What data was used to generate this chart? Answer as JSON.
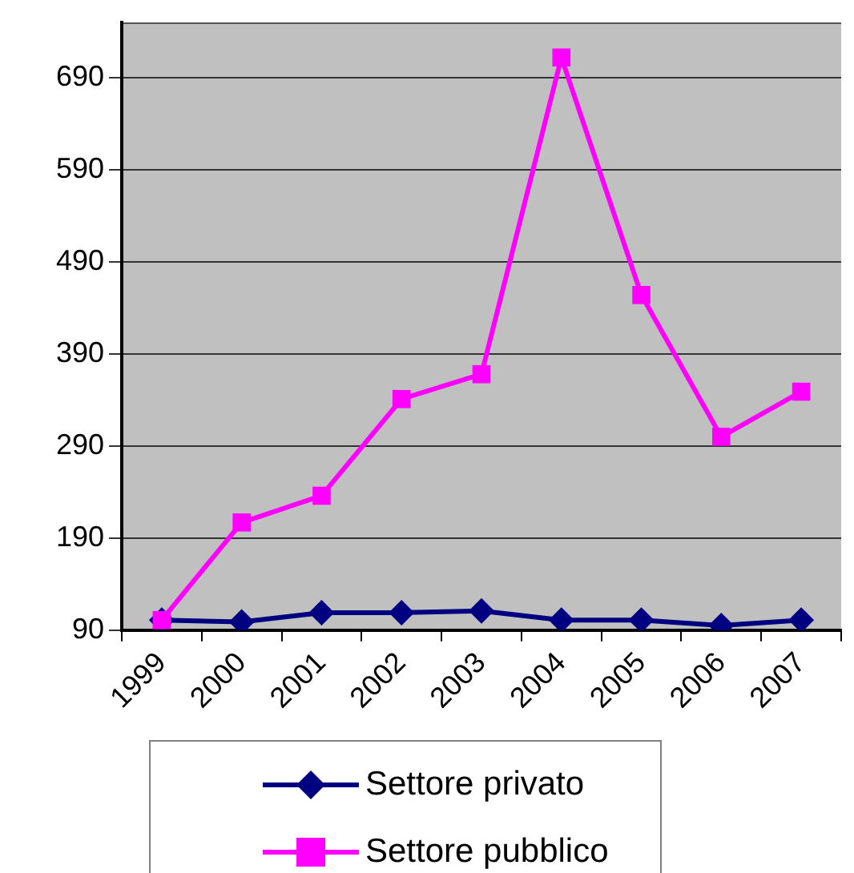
{
  "chart_data": {
    "type": "line",
    "categories": [
      "1999",
      "2000",
      "2001",
      "2002",
      "2003",
      "2004",
      "2005",
      "2006",
      "2007"
    ],
    "series": [
      {
        "name": "Settore privato",
        "color": "#000080",
        "marker": "diamond",
        "values": [
          101,
          99,
          109,
          109,
          111,
          101,
          101,
          95,
          101
        ]
      },
      {
        "name": "Settore pubblico",
        "color": "#ff00ff",
        "marker": "square",
        "values": [
          101,
          207,
          236,
          341,
          368,
          712,
          454,
          300,
          349
        ]
      }
    ],
    "ylim": [
      90,
      750
    ],
    "yticks": [
      90,
      190,
      290,
      390,
      490,
      590,
      690
    ],
    "grid": "y",
    "legend": "bottom"
  }
}
